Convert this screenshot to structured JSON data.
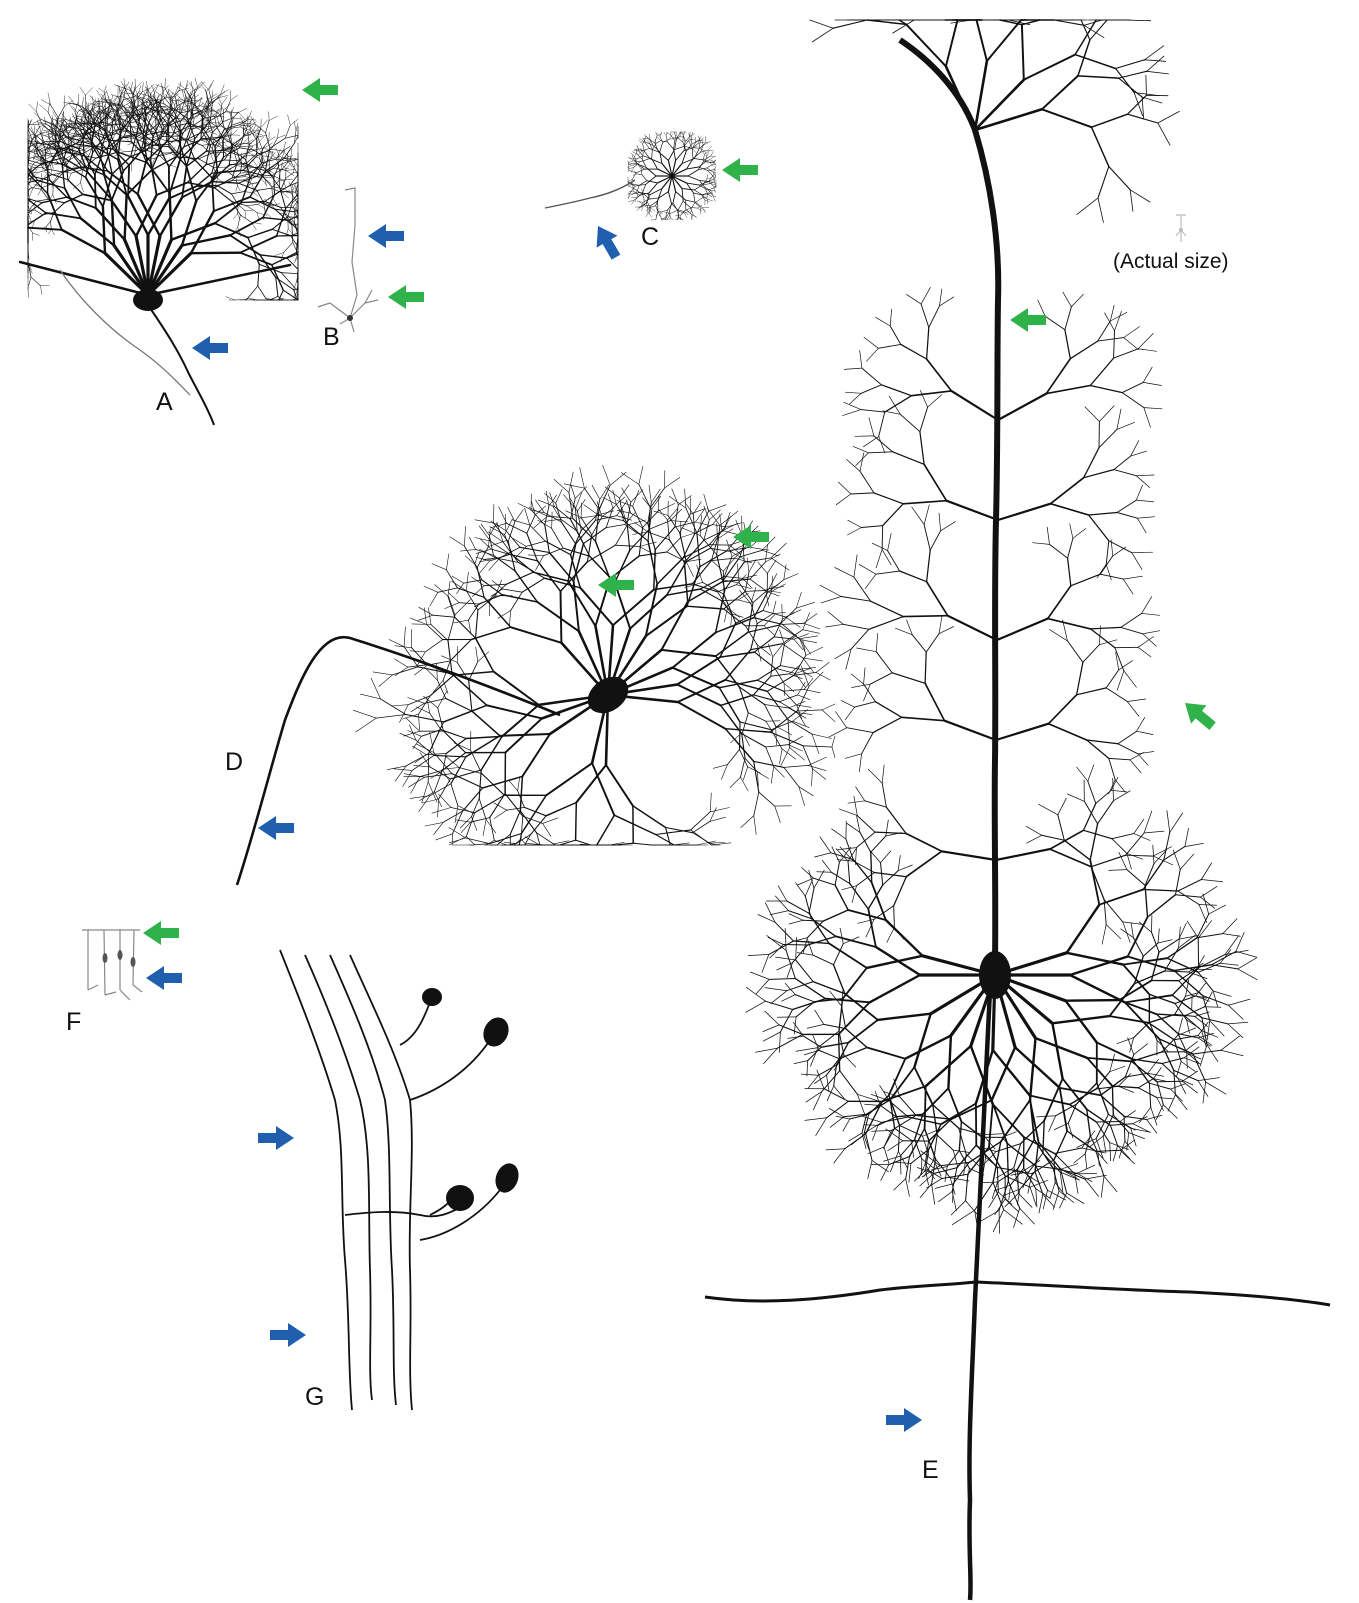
{
  "figure": {
    "panels": {
      "A": {
        "label": "A"
      },
      "B": {
        "label": "B"
      },
      "C": {
        "label": "C"
      },
      "D": {
        "label": "D"
      },
      "E": {
        "label": "E"
      },
      "F": {
        "label": "F"
      },
      "G": {
        "label": "G"
      }
    },
    "actual_size_note": "(Actual size)"
  },
  "colors": {
    "neuron": "#111111",
    "arrow_green": "#2fb24a",
    "arrow_blue": "#1f5fae",
    "faint": "#999999"
  },
  "icons": {
    "green_arrow": "dendrite-marker-arrow",
    "blue_arrow": "axon-marker-arrow"
  }
}
